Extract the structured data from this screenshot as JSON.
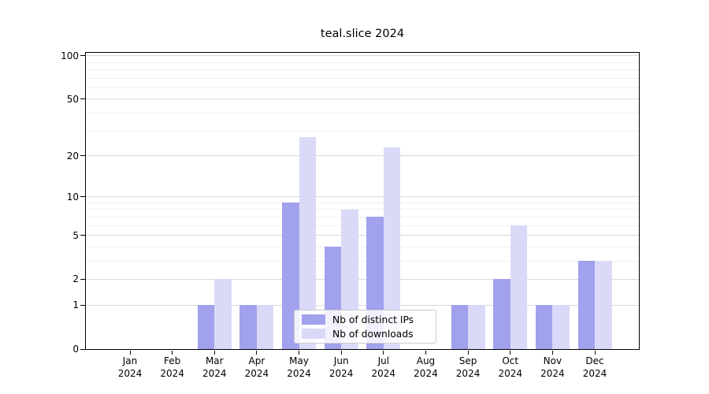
{
  "chart_data": {
    "type": "bar",
    "title": "teal.slice 2024",
    "categories": [
      "Jan 2024",
      "Feb 2024",
      "Mar 2024",
      "Apr 2024",
      "May 2024",
      "Jun 2024",
      "Jul 2024",
      "Aug 2024",
      "Sep 2024",
      "Oct 2024",
      "Nov 2024",
      "Dec 2024"
    ],
    "series": [
      {
        "name": "Nb of distinct IPs",
        "color": "#a1a1ee",
        "values": [
          0,
          0,
          1,
          1,
          9,
          4,
          7,
          0,
          1,
          2,
          1,
          3
        ]
      },
      {
        "name": "Nb of downloads",
        "color": "#dadaf8",
        "values": [
          0,
          0,
          2,
          1,
          27,
          8,
          23,
          0,
          1,
          6,
          1,
          3
        ]
      }
    ],
    "xlabel": "",
    "ylabel": "",
    "yscale": "log1p",
    "ylim": [
      0,
      105
    ],
    "ytick_values": [
      0,
      1,
      2,
      5,
      10,
      20,
      50,
      100
    ],
    "minor_gridline_values": [
      3,
      4,
      6,
      7,
      8,
      9,
      30,
      40,
      60,
      70,
      80,
      90
    ],
    "grid": true,
    "legend_position": "lower center"
  },
  "colors": {
    "background": "#ffffff",
    "axis": "#000000",
    "major_grid": "#d9d9d9",
    "minor_grid": "#f0f0f0",
    "legend_border": "#cccccc"
  }
}
